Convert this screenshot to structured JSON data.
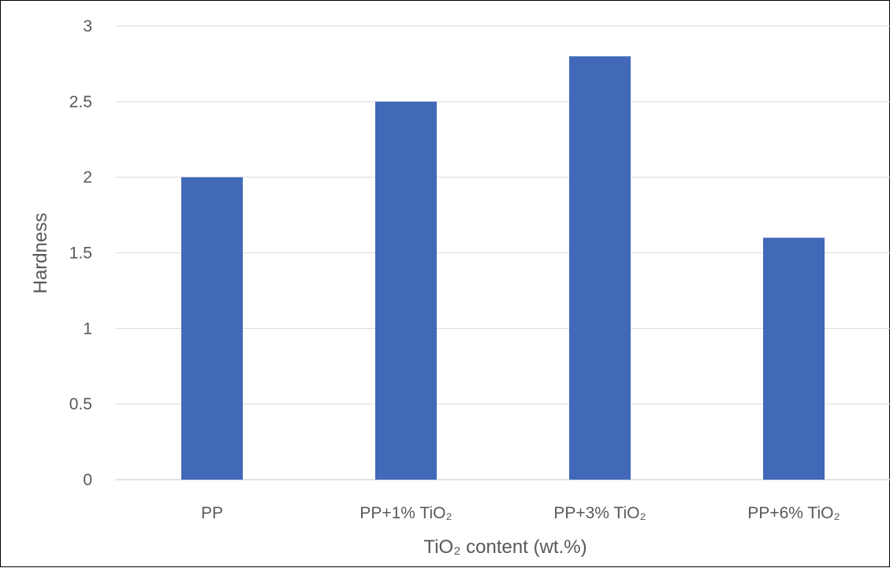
{
  "chart_data": {
    "type": "bar",
    "categories": [
      "PP",
      "PP+1% TiO₂",
      "PP+3% TiO₂",
      "PP+6% TiO₂"
    ],
    "values": [
      2.0,
      2.5,
      2.8,
      1.6
    ],
    "title": "",
    "xlabel": "TiO₂ content (wt.%)",
    "ylabel": "Hardness",
    "ylim": [
      0,
      3
    ],
    "yticks": [
      "0",
      "0.5",
      "1",
      "1.5",
      "2",
      "2.5",
      "3"
    ],
    "grid": true,
    "legend": "none",
    "bar_color": "#4169B8",
    "grid_color": "#D9D9D9"
  }
}
